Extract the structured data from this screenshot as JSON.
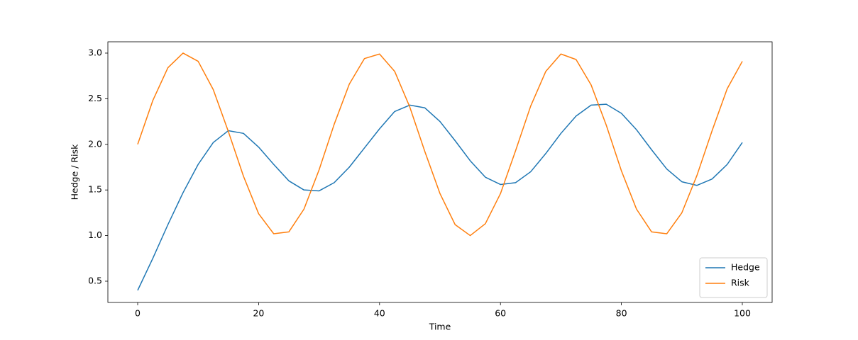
{
  "chart_data": {
    "type": "line",
    "x_label": "Time",
    "y_label": "Hedge / Risk",
    "x": [
      0,
      2.5,
      5,
      7.5,
      10,
      12.5,
      15,
      17.5,
      20,
      22.5,
      25,
      27.5,
      30,
      32.5,
      35,
      37.5,
      40,
      42.5,
      45,
      47.5,
      50,
      52.5,
      55,
      57.5,
      60,
      62.5,
      65,
      67.5,
      70,
      72.5,
      75,
      77.5,
      80,
      82.5,
      85,
      87.5,
      90,
      92.5,
      95,
      97.5,
      100
    ],
    "series": [
      {
        "name": "Hedge",
        "color": "#1f77b4",
        "values": [
          0.4,
          0.75,
          1.12,
          1.47,
          1.78,
          2.02,
          2.15,
          2.12,
          1.97,
          1.78,
          1.6,
          1.5,
          1.49,
          1.58,
          1.75,
          1.96,
          2.17,
          2.36,
          2.43,
          2.4,
          2.25,
          2.04,
          1.82,
          1.64,
          1.56,
          1.58,
          1.7,
          1.9,
          2.12,
          2.31,
          2.43,
          2.44,
          2.34,
          2.16,
          1.94,
          1.73,
          1.59,
          1.55,
          1.62,
          1.78,
          2.02
        ]
      },
      {
        "name": "Risk",
        "color": "#ff7f0e",
        "values": [
          2.0,
          2.48,
          2.84,
          3.0,
          2.91,
          2.6,
          2.14,
          1.65,
          1.24,
          1.02,
          1.04,
          1.29,
          1.72,
          2.22,
          2.66,
          2.94,
          2.99,
          2.8,
          2.41,
          1.92,
          1.46,
          1.12,
          1.0,
          1.13,
          1.46,
          1.93,
          2.42,
          2.8,
          2.99,
          2.93,
          2.65,
          2.21,
          1.71,
          1.29,
          1.04,
          1.02,
          1.25,
          1.66,
          2.15,
          2.61,
          2.91
        ]
      }
    ],
    "xlim": [
      -4.93,
      104.93
    ],
    "ylim": [
      0.267,
      3.124
    ],
    "xticks": [
      0,
      20,
      40,
      60,
      80,
      100
    ],
    "yticks": [
      {
        "value": 0.5,
        "label": "0.5"
      },
      {
        "value": 1.0,
        "label": "1.0"
      },
      {
        "value": 1.5,
        "label": "1.5"
      },
      {
        "value": 2.0,
        "label": "2.0"
      },
      {
        "value": 2.5,
        "label": "2.5"
      },
      {
        "value": 3.0,
        "label": "3.0"
      }
    ],
    "legend": "lower right"
  }
}
